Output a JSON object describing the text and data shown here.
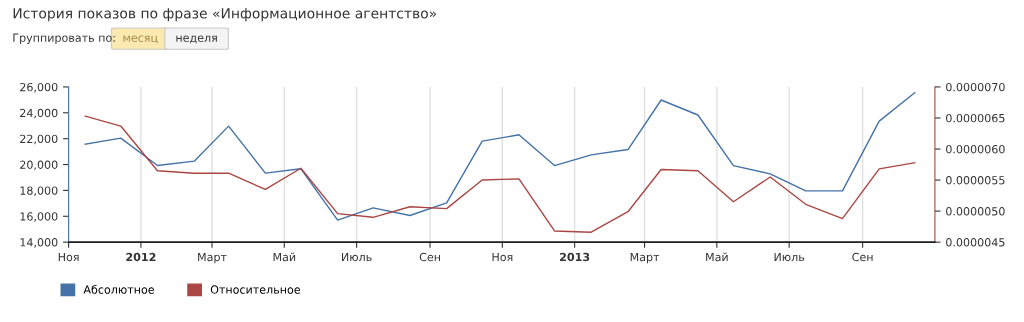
{
  "chart_data": {
    "type": "line",
    "title": "История показов по фразе «Информационное агентство»",
    "annotations": [
      "Группировать по:",
      "месяц",
      "неделя"
    ],
    "x": [
      "2011-11-15",
      "2011-12-15",
      "2012-01-15",
      "2012-02-15",
      "2012-03-15",
      "2012-04-15",
      "2012-05-15",
      "2012-06-15",
      "2012-07-15",
      "2012-08-15",
      "2012-09-15",
      "2012-10-15",
      "2012-11-15",
      "2012-12-15",
      "2013-01-15",
      "2013-02-15",
      "2013-03-15",
      "2013-04-15",
      "2013-05-15",
      "2013-06-15",
      "2013-07-15",
      "2013-08-15",
      "2013-09-15",
      "2013-10-15"
    ],
    "series": [
      {
        "name": "Абсолютное",
        "color": "#4572a7",
        "values": [
          21580,
          22040,
          19930,
          20260,
          22970,
          19340,
          19670,
          15700,
          16650,
          16060,
          17040,
          21810,
          22300,
          19920,
          20750,
          21160,
          24990,
          23830,
          19920,
          19280,
          17960,
          17960,
          23360,
          25560
        ]
      },
      {
        "name": "Относительное",
        "color": "#aa4643",
        "axis": "y2",
        "values": [
          6.53e-06,
          6.37e-06,
          5.65e-06,
          5.61e-06,
          5.61e-06,
          5.35e-06,
          5.69e-06,
          4.96e-06,
          4.9e-06,
          5.07e-06,
          5.04e-06,
          5.5e-06,
          5.52e-06,
          4.68e-06,
          4.66e-06,
          4.99e-06,
          5.67e-06,
          5.65e-06,
          5.15e-06,
          5.55e-06,
          5.11e-06,
          4.88e-06,
          5.68e-06,
          5.78e-06
        ]
      }
    ],
    "xlim": [
      "2011-11-01",
      "2013-11-01"
    ],
    "xticks": [
      {
        "value": "2011-11-01",
        "label": "Ноя"
      },
      {
        "value": "2012-01-01",
        "label": "2012"
      },
      {
        "value": "2012-03-01",
        "label": "Март"
      },
      {
        "value": "2012-05-01",
        "label": "Май"
      },
      {
        "value": "2012-07-01",
        "label": "Июль"
      },
      {
        "value": "2012-09-01",
        "label": "Сен"
      },
      {
        "value": "2012-11-01",
        "label": "Ноя"
      },
      {
        "value": "2013-01-01",
        "label": "2013"
      },
      {
        "value": "2013-03-01",
        "label": "Март"
      },
      {
        "value": "2013-05-01",
        "label": "Май"
      },
      {
        "value": "2013-07-01",
        "label": "Июль"
      },
      {
        "value": "2013-09-01",
        "label": "Сен"
      }
    ],
    "ylim": [
      14000,
      26000
    ],
    "yticks": [
      {
        "value": 14000,
        "label": "14,000"
      },
      {
        "value": 16000,
        "label": "16,000"
      },
      {
        "value": 18000,
        "label": "18,000"
      },
      {
        "value": 20000,
        "label": "20,000"
      },
      {
        "value": 22000,
        "label": "22,000"
      },
      {
        "value": 24000,
        "label": "24,000"
      },
      {
        "value": 26000,
        "label": "26,000"
      }
    ],
    "y2lim": [
      4.5e-06,
      7e-06
    ],
    "y2ticks": [
      {
        "value": 4.5e-06,
        "label": "0.0000045"
      },
      {
        "value": 5e-06,
        "label": "0.0000050"
      },
      {
        "value": 5.5e-06,
        "label": "0.0000055"
      },
      {
        "value": 6e-06,
        "label": "0.0000060"
      },
      {
        "value": 6.5e-06,
        "label": "0.0000065"
      },
      {
        "value": 7e-06,
        "label": "0.0000070"
      }
    ],
    "grid": "x",
    "legend": "bottom left"
  }
}
